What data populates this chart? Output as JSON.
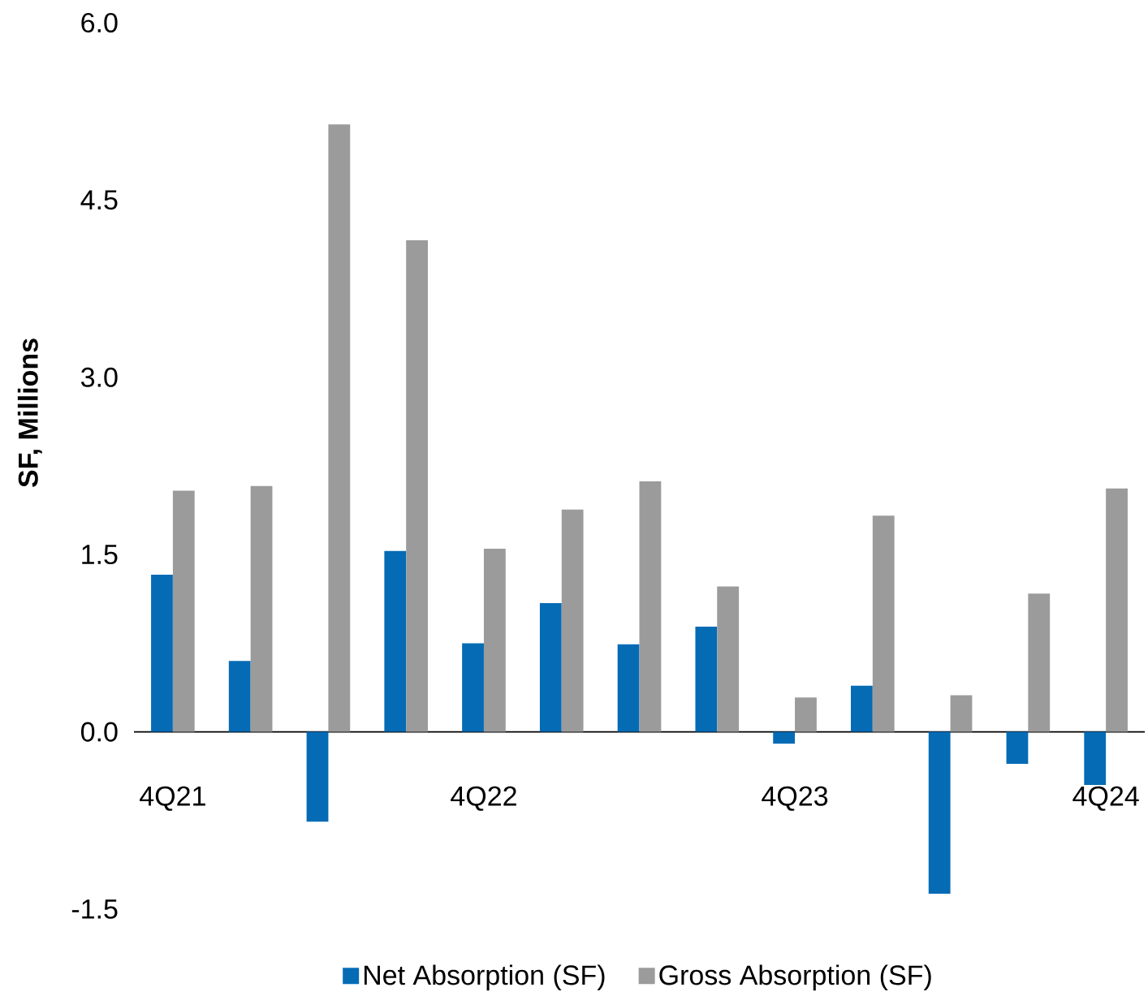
{
  "chart_data": {
    "type": "bar",
    "ylabel": "SF, Millions",
    "categories": [
      "4Q21",
      null,
      null,
      null,
      "4Q22",
      null,
      null,
      null,
      "4Q23",
      null,
      null,
      null,
      "4Q24"
    ],
    "series": [
      {
        "name": "Net Absorption (SF)",
        "color": "#056bb5",
        "values": [
          1.33,
          0.6,
          -0.76,
          1.53,
          0.75,
          1.09,
          0.74,
          0.89,
          -0.1,
          0.39,
          -1.37,
          -0.27,
          -0.45
        ]
      },
      {
        "name": "Gross Absorption (SF)",
        "color": "#9b9b9b",
        "values": [
          2.04,
          2.08,
          5.14,
          4.16,
          1.55,
          1.88,
          2.12,
          1.23,
          0.29,
          1.83,
          0.31,
          1.17,
          2.06
        ]
      }
    ],
    "ylim": [
      -1.5,
      6.0
    ],
    "yticks": [
      {
        "value": -1.5,
        "label": "-1.5"
      },
      {
        "value": 0,
        "label": "0.0"
      },
      {
        "value": 1.5,
        "label": "1.5"
      },
      {
        "value": 3,
        "label": "3.0"
      },
      {
        "value": 4.5,
        "label": "4.5"
      },
      {
        "value": 6,
        "label": "6.0"
      }
    ],
    "legend": "bottom"
  }
}
